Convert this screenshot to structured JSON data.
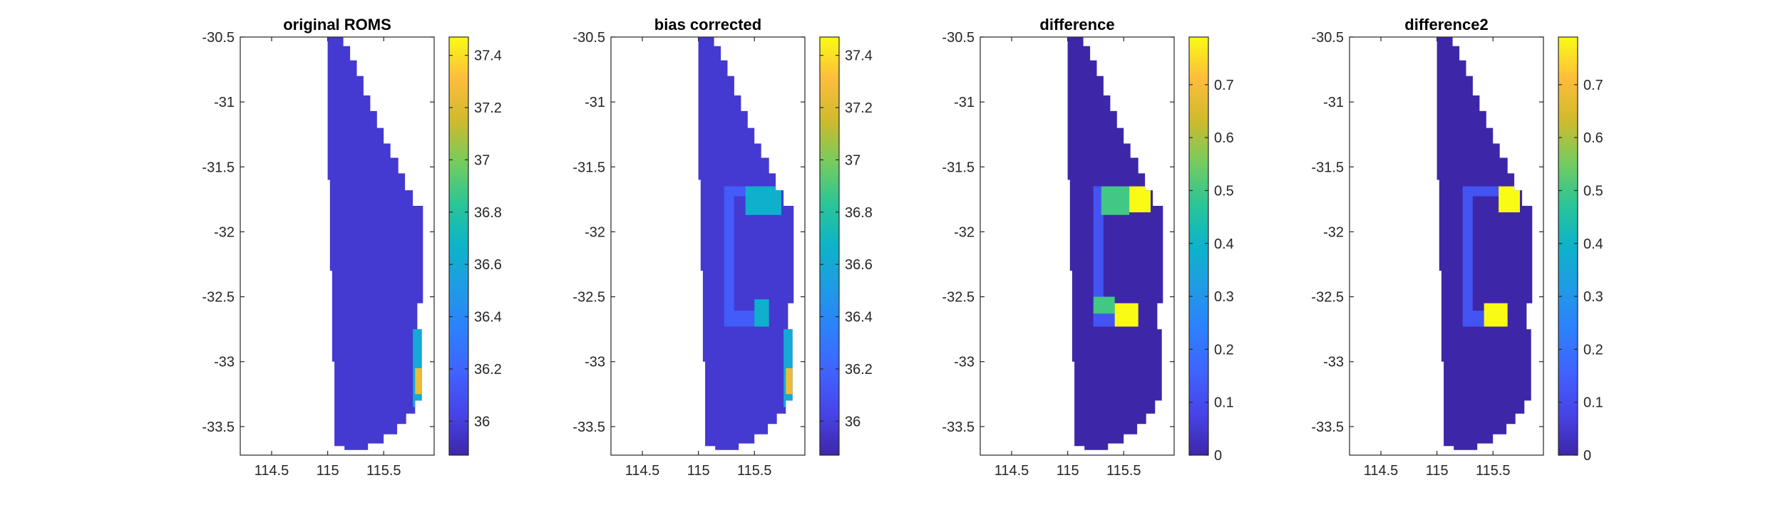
{
  "figure": {
    "colormap": "parula",
    "land_color": "#ffffff",
    "background": "#ffffff",
    "axis_color": "#262626"
  },
  "chart_data": [
    {
      "type": "heatmap",
      "title": "original ROMS",
      "xlabel": "",
      "ylabel": "",
      "xlim": [
        114.22,
        115.95
      ],
      "ylim": [
        -33.72,
        -30.5
      ],
      "xticks": [
        114.5,
        115,
        115.5
      ],
      "xtick_labels": [
        "114.5",
        "115",
        "115.5"
      ],
      "yticks": [
        -30.5,
        -31,
        -31.5,
        -32,
        -32.5,
        -33,
        -33.5
      ],
      "ytick_labels": [
        "-30.5",
        "-31",
        "-31.5",
        "-32",
        "-32.5",
        "-33",
        "-33.5"
      ],
      "colorbar": {
        "clim": [
          35.87,
          37.47
        ],
        "ticks": [
          36,
          36.2,
          36.4,
          36.6,
          36.8,
          37,
          37.2,
          37.4
        ],
        "tick_labels": [
          "36",
          "36.2",
          "36.4",
          "36.6",
          "36.8",
          "37",
          "37.2",
          "37.4"
        ]
      },
      "field": {
        "background": 35.97,
        "regions": [
          {
            "name": "south-east coastal high",
            "lon": [
              115.76,
              115.84
            ],
            "lat": [
              -33.35,
              -32.75
            ],
            "value": 36.6
          },
          {
            "name": "south-east coastal peak",
            "lon": [
              115.78,
              115.84
            ],
            "lat": [
              -33.25,
              -33.05
            ],
            "value": 37.25
          }
        ]
      }
    },
    {
      "type": "heatmap",
      "title": "bias corrected",
      "xlabel": "",
      "ylabel": "",
      "xlim": [
        114.22,
        115.95
      ],
      "ylim": [
        -33.72,
        -30.5
      ],
      "xticks": [
        114.5,
        115,
        115.5
      ],
      "xtick_labels": [
        "114.5",
        "115",
        "115.5"
      ],
      "yticks": [
        -30.5,
        -31,
        -31.5,
        -32,
        -32.5,
        -33,
        -33.5
      ],
      "ytick_labels": [
        "-30.5",
        "-31",
        "-31.5",
        "-32",
        "-32.5",
        "-33",
        "-33.5"
      ],
      "colorbar": {
        "clim": [
          35.87,
          37.47
        ],
        "ticks": [
          36,
          36.2,
          36.4,
          36.6,
          36.8,
          37,
          37.2,
          37.4
        ],
        "tick_labels": [
          "36",
          "36.2",
          "36.4",
          "36.6",
          "36.8",
          "37",
          "37.2",
          "37.4"
        ]
      },
      "field": {
        "background": 35.97,
        "regions": [
          {
            "name": "correction ring",
            "lon": [
              115.23,
              115.74
            ],
            "lat": [
              -32.73,
              -31.65
            ],
            "value": 36.15
          },
          {
            "name": "north-east corrected patch",
            "lon": [
              115.42,
              115.74
            ],
            "lat": [
              -31.87,
              -31.65
            ],
            "value": 36.65
          },
          {
            "name": "south corrected patch",
            "lon": [
              115.5,
              115.63
            ],
            "lat": [
              -32.73,
              -32.52
            ],
            "value": 36.65
          },
          {
            "name": "south-east coastal high",
            "lon": [
              115.76,
              115.84
            ],
            "lat": [
              -33.35,
              -32.75
            ],
            "value": 36.6
          },
          {
            "name": "south-east coastal peak",
            "lon": [
              115.78,
              115.84
            ],
            "lat": [
              -33.25,
              -33.05
            ],
            "value": 37.25
          }
        ]
      }
    },
    {
      "type": "heatmap",
      "title": "difference",
      "xlabel": "",
      "ylabel": "",
      "xlim": [
        114.22,
        115.95
      ],
      "ylim": [
        -33.72,
        -30.5
      ],
      "xticks": [
        114.5,
        115,
        115.5
      ],
      "xtick_labels": [
        "114.5",
        "115",
        "115.5"
      ],
      "yticks": [
        -30.5,
        -31,
        -31.5,
        -32,
        -32.5,
        -33,
        -33.5
      ],
      "ytick_labels": [
        "-30.5",
        "-31",
        "-31.5",
        "-32",
        "-32.5",
        "-33",
        "-33.5"
      ],
      "colorbar": {
        "clim": [
          0,
          0.79
        ],
        "ticks": [
          0,
          0.1,
          0.2,
          0.3,
          0.4,
          0.5,
          0.6,
          0.7
        ],
        "tick_labels": [
          "0",
          "0.1",
          "0.2",
          "0.3",
          "0.4",
          "0.5",
          "0.6",
          "0.7"
        ]
      },
      "field": {
        "background": 0.0,
        "regions": [
          {
            "name": "correction ring",
            "lon": [
              115.23,
              115.74
            ],
            "lat": [
              -32.73,
              -31.65
            ],
            "value": 0.12
          },
          {
            "name": "north-east ring segment",
            "lon": [
              115.3,
              115.55
            ],
            "lat": [
              -31.87,
              -31.65
            ],
            "value": 0.5
          },
          {
            "name": "north-east peak",
            "lon": [
              115.55,
              115.74
            ],
            "lat": [
              -31.85,
              -31.65
            ],
            "value": 0.79
          },
          {
            "name": "south ring segment",
            "lon": [
              115.23,
              115.42
            ],
            "lat": [
              -32.63,
              -32.5
            ],
            "value": 0.5
          },
          {
            "name": "south peak",
            "lon": [
              115.42,
              115.63
            ],
            "lat": [
              -32.73,
              -32.55
            ],
            "value": 0.79
          }
        ]
      }
    },
    {
      "type": "heatmap",
      "title": "difference2",
      "xlabel": "",
      "ylabel": "",
      "xlim": [
        114.22,
        115.95
      ],
      "ylim": [
        -33.72,
        -30.5
      ],
      "xticks": [
        114.5,
        115,
        115.5
      ],
      "xtick_labels": [
        "114.5",
        "115",
        "115.5"
      ],
      "yticks": [
        -30.5,
        -31,
        -31.5,
        -32,
        -32.5,
        -33,
        -33.5
      ],
      "ytick_labels": [
        "-30.5",
        "-31",
        "-31.5",
        "-32",
        "-32.5",
        "-33",
        "-33.5"
      ],
      "colorbar": {
        "clim": [
          0,
          0.79
        ],
        "ticks": [
          0,
          0.1,
          0.2,
          0.3,
          0.4,
          0.5,
          0.6,
          0.7
        ],
        "tick_labels": [
          "0",
          "0.1",
          "0.2",
          "0.3",
          "0.4",
          "0.5",
          "0.6",
          "0.7"
        ]
      },
      "field": {
        "background": 0.0,
        "regions": [
          {
            "name": "correction ring",
            "lon": [
              115.23,
              115.74
            ],
            "lat": [
              -32.73,
              -31.65
            ],
            "value": 0.12
          },
          {
            "name": "north-east peak",
            "lon": [
              115.55,
              115.74
            ],
            "lat": [
              -31.85,
              -31.65
            ],
            "value": 0.79
          },
          {
            "name": "south peak",
            "lon": [
              115.42,
              115.63
            ],
            "lat": [
              -32.73,
              -32.55
            ],
            "value": 0.79
          }
        ]
      }
    }
  ]
}
